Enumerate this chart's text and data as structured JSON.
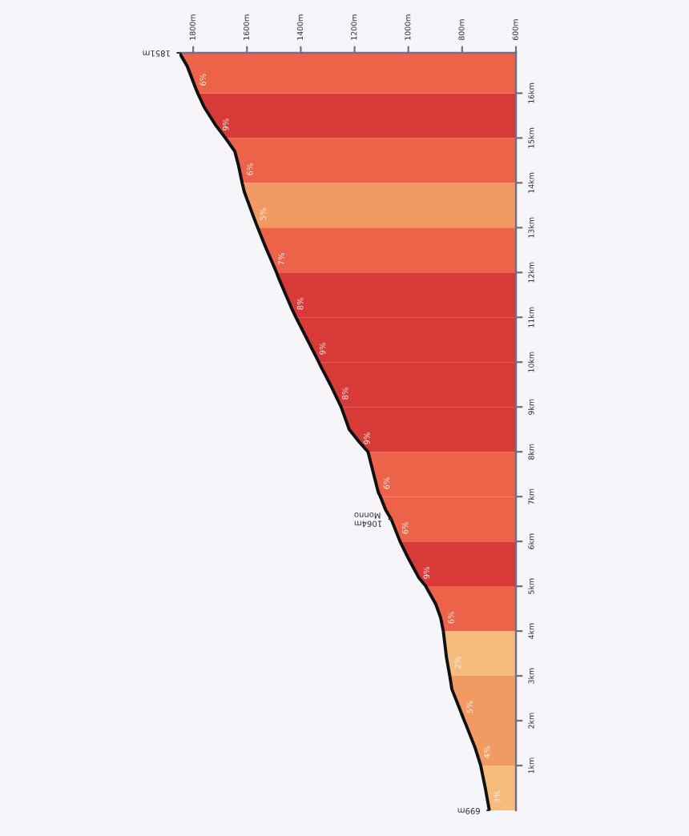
{
  "chart_data": {
    "type": "area",
    "orientation": "horizontal",
    "line_style": "solid",
    "xlim": [
      1851,
      600
    ],
    "xticks": [
      {
        "value": 1800,
        "label": "1800m"
      },
      {
        "value": 1600,
        "label": "1600m"
      },
      {
        "value": 1400,
        "label": "1400m"
      },
      {
        "value": 1200,
        "label": "1200m"
      },
      {
        "value": 1000,
        "label": "1000m"
      },
      {
        "value": 800,
        "label": "800m"
      },
      {
        "value": 600,
        "label": "600m"
      }
    ],
    "ylim": [
      0,
      16.9
    ],
    "yticks": [
      {
        "value": 1,
        "label": "1km"
      },
      {
        "value": 2,
        "label": "2km"
      },
      {
        "value": 3,
        "label": "3km"
      },
      {
        "value": 4,
        "label": "4km"
      },
      {
        "value": 5,
        "label": "5km"
      },
      {
        "value": 6,
        "label": "6km"
      },
      {
        "value": 7,
        "label": "7km"
      },
      {
        "value": 8,
        "label": "8km"
      },
      {
        "value": 9,
        "label": "9km"
      },
      {
        "value": 10,
        "label": "10km"
      },
      {
        "value": 11,
        "label": "11km"
      },
      {
        "value": 12,
        "label": "12km"
      },
      {
        "value": 13,
        "label": "13km"
      },
      {
        "value": 14,
        "label": "14km"
      },
      {
        "value": 15,
        "label": "15km"
      },
      {
        "value": 16,
        "label": "16km"
      }
    ],
    "series": [
      {
        "color": "#f7bb7e",
        "x": [
          0,
          0.5,
          1
        ],
        "values": [
          699,
          714,
          731
        ]
      },
      {
        "color": "#f19b62",
        "x": [
          1,
          1.4,
          1.9,
          2
        ],
        "values": [
          731,
          752,
          785,
          792
        ]
      },
      {
        "color": "#f19b62",
        "x": [
          2,
          2.4,
          2.7,
          3
        ],
        "values": [
          792,
          818,
          838,
          846
        ]
      },
      {
        "color": "#f7bb7e",
        "x": [
          3,
          3.4,
          3.9,
          4
        ],
        "values": [
          846,
          858,
          868,
          870
        ]
      },
      {
        "color": "#ec6349",
        "x": [
          4,
          4.3,
          4.6,
          4.9,
          5
        ],
        "values": [
          870,
          880,
          898,
          926,
          935
        ]
      },
      {
        "color": "#d83a37",
        "x": [
          5,
          5.2,
          5.6,
          6
        ],
        "values": [
          935,
          962,
          998,
          1031
        ]
      },
      {
        "color": "#ec6349",
        "x": [
          6,
          6.5,
          6.7,
          7
        ],
        "values": [
          1031,
          1064,
          1084,
          1104
        ]
      },
      {
        "color": "#ec6349",
        "x": [
          7,
          7.1,
          8
        ],
        "values": [
          1104,
          1112,
          1150
        ]
      },
      {
        "color": "#d83a37",
        "x": [
          8,
          8.2,
          8.5,
          9
        ],
        "values": [
          1150,
          1180,
          1220,
          1250
        ]
      },
      {
        "color": "#d83a37",
        "x": [
          9,
          9.5,
          9.9,
          10
        ],
        "values": [
          1250,
          1290,
          1325,
          1333
        ]
      },
      {
        "color": "#d83a37",
        "x": [
          10,
          10.6,
          11
        ],
        "values": [
          1333,
          1384,
          1418
        ]
      },
      {
        "color": "#d83a37",
        "x": [
          11,
          11.2,
          11.9,
          12
        ],
        "values": [
          1418,
          1434,
          1484,
          1490
        ]
      },
      {
        "color": "#ec6349",
        "x": [
          12,
          12.6,
          13
        ],
        "values": [
          1490,
          1533,
          1560
        ]
      },
      {
        "color": "#f19b62",
        "x": [
          13,
          13.2,
          13.8,
          14
        ],
        "values": [
          1560,
          1573,
          1610,
          1618
        ]
      },
      {
        "color": "#ec6349",
        "x": [
          14,
          14.4,
          14.7,
          15
        ],
        "values": [
          1618,
          1632,
          1645,
          1680
        ]
      },
      {
        "color": "#d83a37",
        "x": [
          15,
          15.3,
          15.7,
          16
        ],
        "values": [
          1680,
          1718,
          1760,
          1783
        ]
      },
      {
        "color": "#ec6349",
        "x": [
          16,
          16.1,
          16.6,
          16.9
        ],
        "values": [
          1783,
          1790,
          1822,
          1851
        ]
      },
      {
        "type": "line",
        "color": "#111111",
        "x": [
          0,
          0.5,
          1,
          1.4,
          1.9,
          2,
          2.4,
          2.7,
          3,
          3.4,
          3.9,
          4,
          4.3,
          4.6,
          4.9,
          5,
          5.2,
          5.6,
          6,
          6.5,
          6.7,
          7,
          7.1,
          8,
          8.2,
          8.5,
          9,
          9.5,
          9.9,
          10,
          10.6,
          11,
          11.2,
          11.9,
          12,
          12.6,
          13,
          13.2,
          13.8,
          14,
          14.4,
          14.7,
          15,
          15.3,
          15.7,
          16,
          16.1,
          16.6,
          16.9
        ],
        "values": [
          699,
          714,
          731,
          752,
          785,
          792,
          818,
          838,
          846,
          858,
          868,
          870,
          880,
          898,
          926,
          935,
          962,
          998,
          1031,
          1064,
          1084,
          1104,
          1112,
          1150,
          1180,
          1220,
          1250,
          1290,
          1325,
          1333,
          1384,
          1418,
          1434,
          1484,
          1490,
          1533,
          1560,
          1573,
          1610,
          1618,
          1632,
          1645,
          1680,
          1718,
          1760,
          1783,
          1790,
          1822,
          1851
        ],
        "value_labels": [
          "699m",
          null,
          null,
          null,
          null,
          null,
          null,
          null,
          null,
          null,
          null,
          null,
          null,
          null,
          null,
          null,
          null,
          null,
          null,
          "1064m\nMonno",
          null,
          null,
          null,
          null,
          null,
          null,
          null,
          null,
          null,
          null,
          null,
          null,
          null,
          null,
          null,
          null,
          null,
          null,
          null,
          null,
          null,
          null,
          null,
          null,
          null,
          null,
          null,
          null,
          "1851m"
        ]
      }
    ],
    "annotations": [
      {
        "text": "3%",
        "x": 708,
        "y": 0.3
      },
      {
        "text": "4%",
        "x": 747,
        "y": 1.3
      },
      {
        "text": "5%",
        "x": 811,
        "y": 2.3
      },
      {
        "text": "2%",
        "x": 855,
        "y": 3.3
      },
      {
        "text": "6%",
        "x": 880,
        "y": 4.3
      },
      {
        "text": "9%",
        "x": 971,
        "y": 5.3
      },
      {
        "text": "6%",
        "x": 1051,
        "y": 6.3
      },
      {
        "text": "6%",
        "x": 1120,
        "y": 7.3
      },
      {
        "text": "9%",
        "x": 1193,
        "y": 8.3
      },
      {
        "text": "8%",
        "x": 1274,
        "y": 9.3
      },
      {
        "text": "9%",
        "x": 1358,
        "y": 10.3
      },
      {
        "text": "8%",
        "x": 1441,
        "y": 11.3
      },
      {
        "text": "7%",
        "x": 1511,
        "y": 12.3
      },
      {
        "text": "5%",
        "x": 1579,
        "y": 13.3
      },
      {
        "text": "6%",
        "x": 1628,
        "y": 14.3
      },
      {
        "text": "9%",
        "x": 1718,
        "y": 15.3
      },
      {
        "text": "6%",
        "x": 1803,
        "y": 16.3
      }
    ]
  }
}
